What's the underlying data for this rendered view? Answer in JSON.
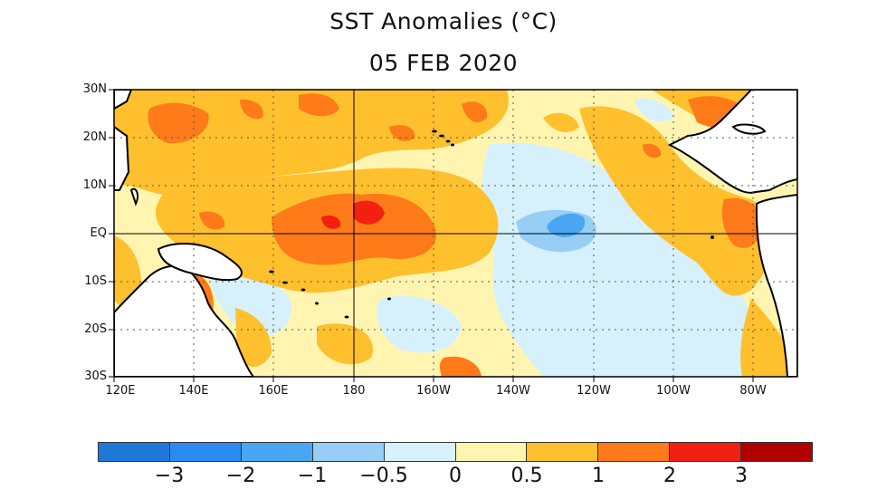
{
  "title": "SST Anomalies (°C)",
  "date": "05 FEB 2020",
  "lat_labels": [
    "30N",
    "20N",
    "10N",
    "EQ",
    "10S",
    "20S",
    "30S"
  ],
  "lon_labels": [
    "120E",
    "140E",
    "160E",
    "180",
    "160W",
    "140W",
    "120W",
    "100W",
    "80W"
  ],
  "colorbar": {
    "colors": [
      "#1f78d8",
      "#2a8cf0",
      "#4aa6f2",
      "#96cef6",
      "#d6f1fb",
      "#fff5b0",
      "#ffc02e",
      "#ff7a18",
      "#f22010",
      "#b00000"
    ],
    "labels": [
      "−3",
      "−2",
      "−1",
      "−0.5",
      "0",
      "0.5",
      "1",
      "2",
      "3"
    ]
  },
  "colors": {
    "land": "#ffffff",
    "coast": "#000000",
    "grid": "#555555"
  }
}
